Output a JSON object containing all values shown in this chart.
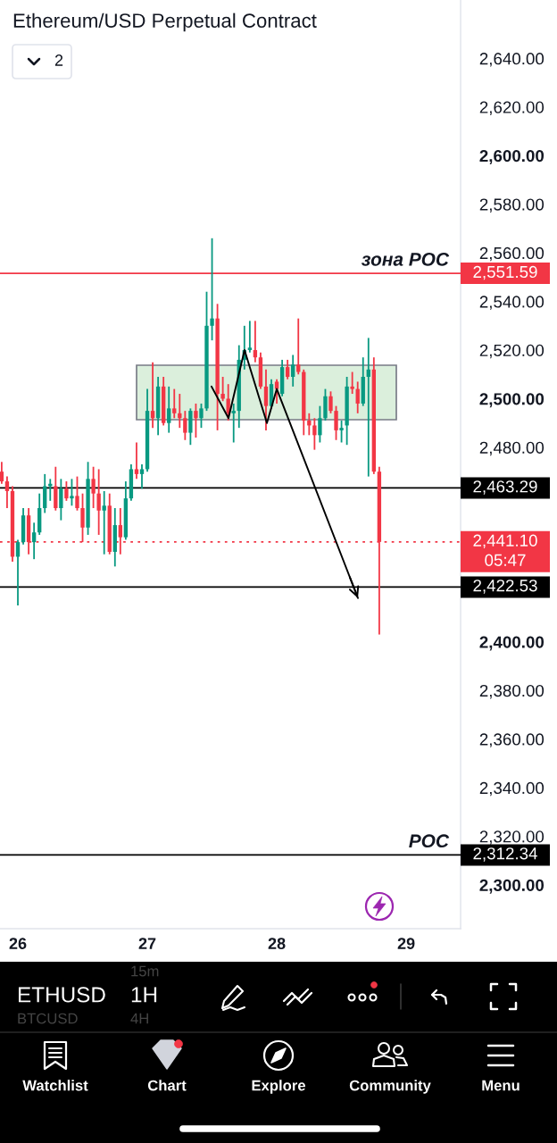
{
  "chart_data": {
    "type": "candlestick",
    "title": "Ethereum/USD Perpetual Contract",
    "x": [
      25.875,
      25.9167,
      25.9583,
      26,
      26.0417,
      26.0833,
      26.125,
      26.1667,
      26.2083,
      26.25,
      26.2917,
      26.3333,
      26.375,
      26.4167,
      26.4583,
      26.5,
      26.5417,
      26.5833,
      26.625,
      26.6667,
      26.7083,
      26.75,
      26.7917,
      26.8333,
      26.875,
      26.9167,
      26.9583,
      27,
      27.0417,
      27.0833,
      27.125,
      27.1667,
      27.2083,
      27.25,
      27.2917,
      27.3333,
      27.375,
      27.4167,
      27.4583,
      27.5,
      27.5417,
      27.5833,
      27.625,
      27.6667,
      27.7083,
      27.75,
      27.7917,
      27.8333,
      27.875,
      27.9167,
      27.9583,
      28,
      28.0417,
      28.0833,
      28.125,
      28.1667,
      28.2083,
      28.25,
      28.2917,
      28.3333,
      28.375,
      28.4167,
      28.4583,
      28.5,
      28.5417,
      28.5833,
      28.625,
      28.6667,
      28.7083,
      28.75,
      28.7917
    ],
    "ohlc": [
      [
        2470,
        2474,
        2465,
        2466
      ],
      [
        2466,
        2468,
        2455,
        2462
      ],
      [
        2462,
        2464,
        2433,
        2435
      ],
      [
        2435,
        2442,
        2415,
        2441
      ],
      [
        2441,
        2455,
        2440,
        2452
      ],
      [
        2452,
        2455,
        2436,
        2441
      ],
      [
        2441,
        2449,
        2434,
        2445
      ],
      [
        2445,
        2461,
        2444,
        2455
      ],
      [
        2455,
        2469,
        2453,
        2464
      ],
      [
        2464,
        2467,
        2458,
        2465
      ],
      [
        2464,
        2472,
        2454,
        2455
      ],
      [
        2455,
        2467,
        2450,
        2463
      ],
      [
        2463,
        2466,
        2458,
        2459
      ],
      [
        2459,
        2467,
        2456,
        2460
      ],
      [
        2460,
        2468,
        2454,
        2455
      ],
      [
        2455,
        2461,
        2441,
        2447
      ],
      [
        2447,
        2474,
        2444,
        2467
      ],
      [
        2467,
        2472,
        2455,
        2461
      ],
      [
        2461,
        2471,
        2444,
        2454
      ],
      [
        2454,
        2462,
        2436,
        2456
      ],
      [
        2456,
        2461,
        2436,
        2437
      ],
      [
        2437,
        2455,
        2431,
        2448
      ],
      [
        2448,
        2455,
        2436,
        2443
      ],
      [
        2443,
        2466,
        2442,
        2459
      ],
      [
        2459,
        2473,
        2458,
        2471
      ],
      [
        2471,
        2482,
        2467,
        2469
      ],
      [
        2469,
        2473,
        2463,
        2471
      ],
      [
        2471,
        2504,
        2470,
        2495
      ],
      [
        2495,
        2515,
        2488,
        2492
      ],
      [
        2492,
        2509,
        2485,
        2505
      ],
      [
        2505,
        2509,
        2489,
        2490
      ],
      [
        2490,
        2505,
        2486,
        2496
      ],
      [
        2496,
        2504,
        2492,
        2494
      ],
      [
        2494,
        2502,
        2488,
        2492
      ],
      [
        2492,
        2495,
        2483,
        2486
      ],
      [
        2486,
        2496,
        2481,
        2495
      ],
      [
        2495,
        2498,
        2484,
        2492
      ],
      [
        2492,
        2498,
        2488,
        2496
      ],
      [
        2496,
        2544,
        2495,
        2530
      ],
      [
        2530,
        2566,
        2524,
        2533
      ],
      [
        2533,
        2539,
        2487,
        2502
      ],
      [
        2502,
        2509,
        2499,
        2500
      ],
      [
        2500,
        2506,
        2491,
        2494
      ],
      [
        2494,
        2498,
        2482,
        2495
      ],
      [
        2495,
        2522,
        2488,
        2516
      ],
      [
        2516,
        2530,
        2512,
        2520
      ],
      [
        2520,
        2532,
        2519,
        2521
      ],
      [
        2520,
        2532,
        2515,
        2517
      ],
      [
        2517,
        2519,
        2504,
        2505
      ],
      [
        2505,
        2512,
        2487,
        2497
      ],
      [
        2497,
        2508,
        2496,
        2506
      ],
      [
        2507,
        2508,
        2498,
        2504
      ],
      [
        2502,
        2516,
        2501,
        2513
      ],
      [
        2513,
        2516,
        2508,
        2509
      ],
      [
        2509,
        2518,
        2505,
        2514
      ],
      [
        2514,
        2533,
        2510,
        2511
      ],
      [
        2511,
        2512,
        2485,
        2491
      ],
      [
        2491,
        2494,
        2485,
        2489
      ],
      [
        2489,
        2492,
        2479,
        2485
      ],
      [
        2485,
        2497,
        2482,
        2492
      ],
      [
        2492,
        2504,
        2491,
        2501
      ],
      [
        2501,
        2503,
        2494,
        2495
      ],
      [
        2495,
        2497,
        2483,
        2487
      ],
      [
        2487,
        2491,
        2482,
        2488
      ],
      [
        2489,
        2509,
        2481,
        2505
      ],
      [
        2505,
        2511,
        2502,
        2504
      ],
      [
        2504,
        2507,
        2494,
        2498
      ],
      [
        2498,
        2517,
        2497,
        2509
      ],
      [
        2509,
        2525,
        2468,
        2512
      ],
      [
        2512,
        2517,
        2469,
        2470
      ],
      [
        2470,
        2472,
        2403,
        2441.1
      ]
    ],
    "colors": [
      "#f23645",
      "#f23645",
      "#f23645",
      "#089981",
      "#089981",
      "#f23645",
      "#089981",
      "#089981",
      "#089981",
      "#089981",
      "#f23645",
      "#089981",
      "#f23645",
      "#089981",
      "#f23645",
      "#f23645",
      "#089981",
      "#f23645",
      "#f23645",
      "#089981",
      "#f23645",
      "#089981",
      "#f23645",
      "#089981",
      "#089981",
      "#f23645",
      "#089981",
      "#089981",
      "#f23645",
      "#089981",
      "#f23645",
      "#089981",
      "#f23645",
      "#f23645",
      "#f23645",
      "#089981",
      "#f23645",
      "#089981",
      "#089981",
      "#089981",
      "#f23645",
      "#f23645",
      "#f23645",
      "#089981",
      "#089981",
      "#089981",
      "#089981",
      "#f23645",
      "#f23645",
      "#f23645",
      "#089981",
      "#f23645",
      "#089981",
      "#f23645",
      "#089981",
      "#f23645",
      "#f23645",
      "#f23645",
      "#f23645",
      "#089981",
      "#089981",
      "#f23645",
      "#f23645",
      "#089981",
      "#089981",
      "#f23645",
      "#f23645",
      "#089981",
      "#089981",
      "#f23645",
      "#f23645"
    ],
    "series": [
      {
        "type": "line",
        "color": "#000000",
        "x": [
          27.496,
          27.627,
          27.751,
          27.924,
          28.0,
          28.627
        ],
        "values": [
          2505,
          2492,
          2520,
          2490,
          2504,
          2418
        ]
      }
    ],
    "xlim": [
      25.862,
      29.42
    ],
    "xticks": [
      26,
      27,
      28,
      29
    ],
    "ylim": [
      2282,
      2664
    ],
    "yticks": [
      {
        "value": 2300,
        "label": "2,300.00"
      },
      {
        "value": 2320,
        "label": "2,320.00"
      },
      {
        "value": 2340,
        "label": "2,340.00"
      },
      {
        "value": 2360,
        "label": "2,360.00"
      },
      {
        "value": 2380,
        "label": "2,380.00"
      },
      {
        "value": 2400,
        "label": "2,400.00"
      },
      {
        "value": 2480,
        "label": "2,480.00"
      },
      {
        "value": 2500,
        "label": "2,500.00"
      },
      {
        "value": 2520,
        "label": "2,520.00"
      },
      {
        "value": 2540,
        "label": "2,540.00"
      },
      {
        "value": 2560,
        "label": "2,560.00"
      },
      {
        "value": 2580,
        "label": "2,580.00"
      },
      {
        "value": 2600,
        "label": "2,600.00"
      },
      {
        "value": 2620,
        "label": "2,620.00"
      },
      {
        "value": 2640,
        "label": "2,640.00"
      }
    ],
    "ref_lines": [
      {
        "axis": "y",
        "value": 2551.59,
        "label": "2,551.59",
        "color": "#f23645",
        "line_style": "solid"
      },
      {
        "axis": "y",
        "value": 2463.29,
        "label": "2,463.29",
        "color": "#000000",
        "line_style": "solid"
      },
      {
        "axis": "y",
        "value": 2441.1,
        "label": "2,441.10",
        "color": "#f23645",
        "line_style": "dotted"
      },
      {
        "axis": "y",
        "value": 2422.53,
        "label": "2,422.53",
        "color": "#000000",
        "line_style": "solid"
      },
      {
        "axis": "y",
        "value": 2312.34,
        "label": "2,312.34",
        "color": "#000000",
        "line_style": "solid"
      }
    ],
    "annotations": [
      {
        "text": "зона POC",
        "x": 29.33,
        "y": 2551.59
      },
      {
        "text": "POC",
        "x": 29.33,
        "y": 2312.34
      },
      "05:47",
      "2",
      "ETHUSD",
      "1H",
      "15m",
      "BTCUSD",
      "4H",
      "Watchlist",
      "Chart",
      "Explore",
      "Community",
      "Menu"
    ]
  }
}
